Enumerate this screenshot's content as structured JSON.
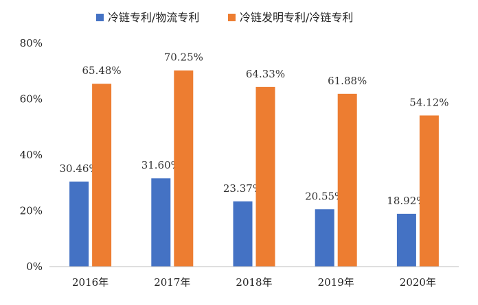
{
  "chart_data": {
    "type": "bar",
    "categories": [
      "2016年",
      "2017年",
      "2018年",
      "2019年",
      "2020年"
    ],
    "series": [
      {
        "name": "冷链专利/物流专利",
        "values": [
          30.46,
          31.6,
          23.37,
          20.55,
          18.92
        ],
        "labels": [
          "30.46%",
          "31.60%",
          "23.37%",
          "20.55%",
          "18.92%"
        ],
        "color": "#4472c4"
      },
      {
        "name": "冷链发明专利/冷链专利",
        "values": [
          65.48,
          70.25,
          64.33,
          61.88,
          54.12
        ],
        "labels": [
          "65.48%",
          "70.25%",
          "64.33%",
          "61.88%",
          "54.12%"
        ],
        "color": "#ed7d31"
      }
    ],
    "yticks": [
      {
        "value": 0,
        "label": "0%"
      },
      {
        "value": 20,
        "label": "20%"
      },
      {
        "value": 40,
        "label": "40%"
      },
      {
        "value": 60,
        "label": "60%"
      },
      {
        "value": 80,
        "label": "80%"
      }
    ],
    "ylim": [
      0,
      80
    ],
    "legend_position": "top-center",
    "grid": false
  }
}
